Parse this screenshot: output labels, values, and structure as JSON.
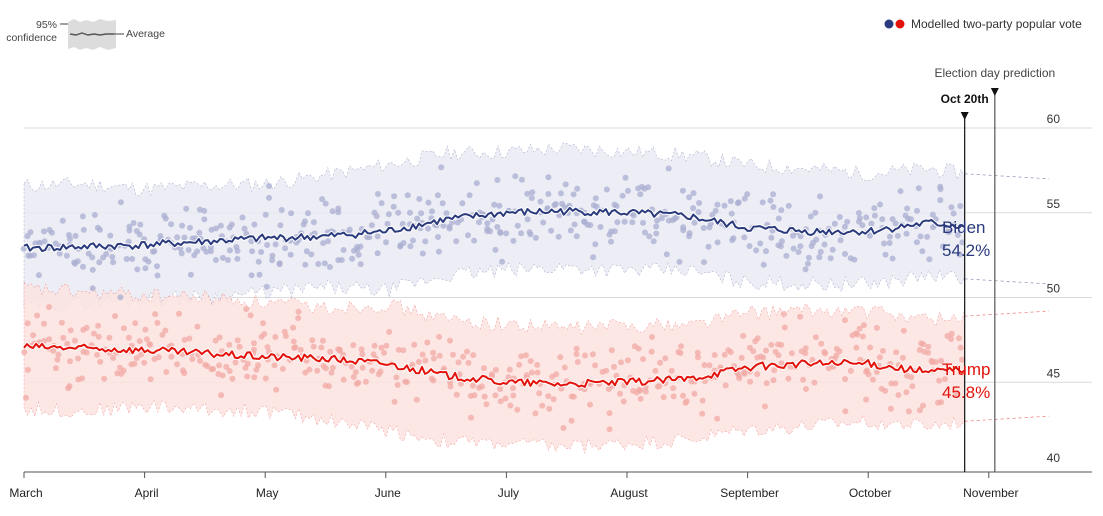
{
  "legend": {
    "confidence_label_line1": "95%",
    "confidence_label_line2": "confidence",
    "average_label": "Average",
    "series_legend_label": "Modelled two-party popular vote",
    "series_dot_colors": [
      "#2a3a7c",
      "#e3120b"
    ]
  },
  "markers": {
    "today_label": "Oct 20th",
    "election_label": "Election day prediction"
  },
  "colors": {
    "biden": "#2a3a7c",
    "trump": "#e3120b",
    "biden_band": "#e9eaf3",
    "trump_band": "#fbe3e0",
    "biden_dot": "#a9aed0",
    "trump_dot": "#f2a9a4"
  },
  "chart_data": {
    "type": "line",
    "title": "",
    "xlabel": "",
    "ylabel": "",
    "ylim": [
      40,
      61
    ],
    "y_ticks": [
      40,
      45,
      50,
      55,
      60
    ],
    "x_month_labels": [
      "March",
      "April",
      "May",
      "June",
      "July",
      "August",
      "September",
      "October",
      "November"
    ],
    "grid": "horizontal",
    "series": [
      {
        "name": "Biden",
        "end_label": "54.2%",
        "x_months": [
          0,
          0.5,
          1,
          1.5,
          2,
          2.5,
          3,
          3.5,
          4,
          4.5,
          5,
          5.5,
          6,
          6.5,
          7,
          7.5,
          7.8
        ],
        "values": [
          52.9,
          53.0,
          53.1,
          53.3,
          53.5,
          53.6,
          53.9,
          54.6,
          55.0,
          55.1,
          55.0,
          54.8,
          54.1,
          53.9,
          53.9,
          54.4,
          54.2
        ],
        "band_upper": [
          56.6,
          56.7,
          56.4,
          56.6,
          56.7,
          57.2,
          57.8,
          58.5,
          58.6,
          58.8,
          58.6,
          58.4,
          57.8,
          57.6,
          57.3,
          57.6,
          57.3
        ],
        "band_lower": [
          49.5,
          49.7,
          49.9,
          50.0,
          50.3,
          50.6,
          50.4,
          51.3,
          51.6,
          51.8,
          51.6,
          51.6,
          50.9,
          50.8,
          50.8,
          51.3,
          51.1
        ],
        "projection": {
          "x_months": [
            7.8,
            8.5
          ],
          "band_upper": [
            57.3,
            57.0
          ],
          "band_lower": [
            51.1,
            50.8
          ]
        }
      },
      {
        "name": "Trump",
        "end_label": "45.8%",
        "x_months": [
          0,
          0.5,
          1,
          1.5,
          2,
          2.5,
          3,
          3.5,
          4,
          4.5,
          5,
          5.5,
          6,
          6.5,
          7,
          7.5,
          7.8
        ],
        "values": [
          47.1,
          47.0,
          46.9,
          46.7,
          46.5,
          46.4,
          46.1,
          45.4,
          45.0,
          44.9,
          45.0,
          45.2,
          45.9,
          46.1,
          46.1,
          45.6,
          45.8
        ],
        "band_upper": [
          50.5,
          50.3,
          50.1,
          50.0,
          49.7,
          49.4,
          49.6,
          48.7,
          48.4,
          48.2,
          48.4,
          48.4,
          49.1,
          49.2,
          49.2,
          48.7,
          48.9
        ],
        "band_lower": [
          43.4,
          43.3,
          43.6,
          43.4,
          43.3,
          42.8,
          42.2,
          41.5,
          41.4,
          41.2,
          41.4,
          41.6,
          42.2,
          42.4,
          42.7,
          42.4,
          42.7
        ],
        "projection": {
          "x_months": [
            7.8,
            8.5
          ],
          "band_upper": [
            48.9,
            49.2
          ],
          "band_lower": [
            42.7,
            43.0
          ]
        }
      }
    ],
    "annotations": [
      {
        "label": "Oct 20th",
        "x_month": 7.8
      },
      {
        "label": "Election day prediction",
        "x_month": 8.05
      }
    ]
  }
}
